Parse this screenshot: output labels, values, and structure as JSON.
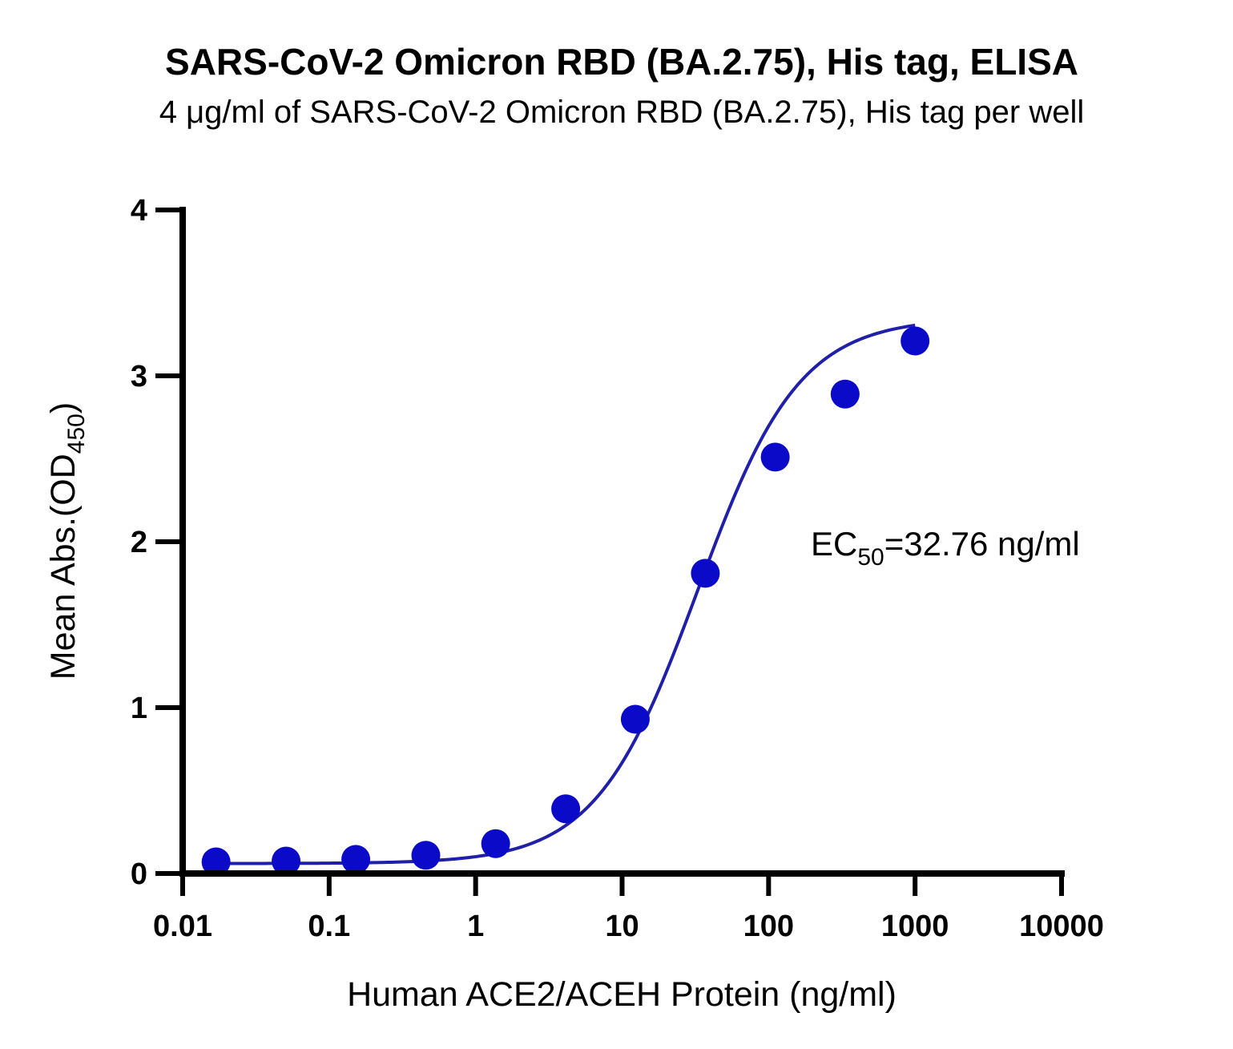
{
  "chart_data": {
    "type": "scatter",
    "title": "SARS-CoV-2 Omicron RBD (BA.2.75), His tag, ELISA",
    "subtitle": "4 μg/ml of SARS-CoV-2 Omicron RBD (BA.2.75), His tag per well",
    "xlabel": "Human ACE2/ACEH Protein (ng/ml)",
    "ylabel": {
      "main": "Mean Abs.(OD",
      "sub": "450",
      "end": ")"
    },
    "x_scale": "log",
    "xlim": [
      0.01,
      10000
    ],
    "ylim": [
      0,
      4
    ],
    "x_ticks": [
      0.01,
      0.1,
      1,
      10,
      100,
      1000,
      10000
    ],
    "x_tick_labels": [
      "0.01",
      "0.1",
      "1",
      "10",
      "100",
      "1000",
      "10000"
    ],
    "y_ticks": [
      0,
      1,
      2,
      3,
      4
    ],
    "y_tick_labels": [
      "0",
      "1",
      "2",
      "3",
      "4"
    ],
    "grid": false,
    "series": [
      {
        "color": "#0a0ac8",
        "x": [
          0.0169,
          0.0508,
          0.152,
          0.457,
          1.37,
          4.12,
          12.3,
          37.0,
          111,
          333,
          1000
        ],
        "y": [
          0.07,
          0.075,
          0.085,
          0.11,
          0.18,
          0.39,
          0.93,
          1.81,
          2.51,
          2.89,
          3.21
        ]
      }
    ],
    "fit_curve": {
      "type": "4PL",
      "bottom": 0.06,
      "top": 3.35,
      "ec50": 32.76,
      "hill": 1.25,
      "color": "#1f1fa8"
    },
    "annotation": {
      "prefix": "EC",
      "sub": "50",
      "suffix": "=32.76 ng/ml"
    }
  }
}
